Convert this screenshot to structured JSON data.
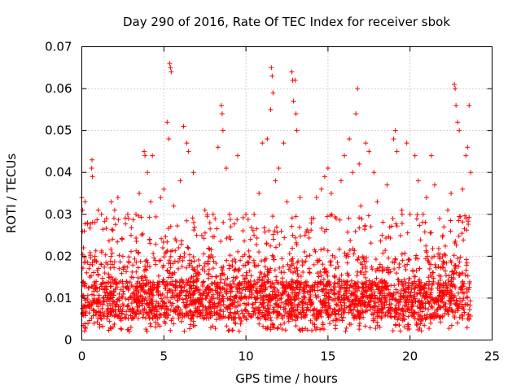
{
  "chart_data": {
    "type": "scatter",
    "title": "Day 290 of 2016, Rate Of TEC Index for receiver sbok",
    "xlabel": "GPS time / hours",
    "ylabel": "ROTI / TECUs",
    "xlim": [
      0,
      25
    ],
    "ylim": [
      0,
      0.07
    ],
    "xticks": [
      0,
      5,
      10,
      15,
      20,
      25
    ],
    "yticks": [
      0,
      0.01,
      0.02,
      0.03,
      0.04,
      0.05,
      0.06,
      0.07
    ],
    "xtick_labels": [
      "0",
      "5",
      "10",
      "15",
      "20",
      "25"
    ],
    "ytick_labels": [
      "0",
      "0.01",
      "0.02",
      "0.03",
      "0.04",
      "0.05",
      "0.06",
      "0.07"
    ],
    "grid": true,
    "marker": "+",
    "marker_color": "#ff0000",
    "series": [
      {
        "name": "ROTI",
        "points": [
          [
            0.0,
            0.034
          ],
          [
            0.05,
            0.031
          ],
          [
            0.1,
            0.022
          ],
          [
            0.15,
            0.026
          ],
          [
            0.2,
            0.033
          ],
          [
            0.35,
            0.028
          ],
          [
            0.5,
            0.018
          ],
          [
            0.6,
            0.041
          ],
          [
            0.62,
            0.043
          ],
          [
            0.65,
            0.039
          ],
          [
            0.8,
            0.02
          ],
          [
            1.0,
            0.031
          ],
          [
            1.2,
            0.03
          ],
          [
            1.4,
            0.016
          ],
          [
            1.5,
            0.029
          ],
          [
            1.8,
            0.033
          ],
          [
            2.0,
            0.031
          ],
          [
            2.2,
            0.034
          ],
          [
            2.5,
            0.02
          ],
          [
            2.8,
            0.03
          ],
          [
            3.0,
            0.025
          ],
          [
            3.3,
            0.03
          ],
          [
            3.5,
            0.035
          ],
          [
            3.8,
            0.045
          ],
          [
            3.85,
            0.044
          ],
          [
            4.0,
            0.04
          ],
          [
            4.2,
            0.033
          ],
          [
            4.3,
            0.044
          ],
          [
            4.5,
            0.018
          ],
          [
            4.8,
            0.034
          ],
          [
            5.0,
            0.036
          ],
          [
            5.2,
            0.052
          ],
          [
            5.3,
            0.048
          ],
          [
            5.35,
            0.066
          ],
          [
            5.4,
            0.065
          ],
          [
            5.45,
            0.064
          ],
          [
            5.6,
            0.032
          ],
          [
            6.0,
            0.038
          ],
          [
            6.2,
            0.051
          ],
          [
            6.4,
            0.047
          ],
          [
            6.5,
            0.045
          ],
          [
            6.8,
            0.04
          ],
          [
            7.0,
            0.025
          ],
          [
            7.5,
            0.031
          ],
          [
            7.8,
            0.028
          ],
          [
            8.0,
            0.03
          ],
          [
            8.3,
            0.046
          ],
          [
            8.5,
            0.056
          ],
          [
            8.55,
            0.054
          ],
          [
            8.6,
            0.05
          ],
          [
            8.8,
            0.041
          ],
          [
            9.0,
            0.03
          ],
          [
            9.5,
            0.044
          ],
          [
            9.8,
            0.02
          ],
          [
            10.0,
            0.03
          ],
          [
            10.2,
            0.02
          ],
          [
            10.5,
            0.03
          ],
          [
            10.8,
            0.035
          ],
          [
            11.0,
            0.047
          ],
          [
            11.3,
            0.048
          ],
          [
            11.5,
            0.055
          ],
          [
            11.55,
            0.065
          ],
          [
            11.6,
            0.063
          ],
          [
            11.65,
            0.059
          ],
          [
            11.8,
            0.038
          ],
          [
            12.0,
            0.041
          ],
          [
            12.3,
            0.047
          ],
          [
            12.5,
            0.033
          ],
          [
            12.8,
            0.064
          ],
          [
            12.85,
            0.062
          ],
          [
            12.9,
            0.057
          ],
          [
            13.0,
            0.062
          ],
          [
            13.05,
            0.054
          ],
          [
            13.1,
            0.05
          ],
          [
            13.3,
            0.034
          ],
          [
            13.6,
            0.025
          ],
          [
            14.0,
            0.029
          ],
          [
            14.3,
            0.034
          ],
          [
            14.6,
            0.036
          ],
          [
            14.8,
            0.039
          ],
          [
            15.0,
            0.041
          ],
          [
            15.2,
            0.035
          ],
          [
            15.5,
            0.029
          ],
          [
            15.8,
            0.038
          ],
          [
            16.0,
            0.044
          ],
          [
            16.3,
            0.048
          ],
          [
            16.5,
            0.04
          ],
          [
            16.7,
            0.054
          ],
          [
            16.8,
            0.06
          ],
          [
            16.9,
            0.042
          ],
          [
            17.0,
            0.032
          ],
          [
            17.3,
            0.047
          ],
          [
            17.5,
            0.045
          ],
          [
            17.8,
            0.04
          ],
          [
            18.0,
            0.033
          ],
          [
            18.3,
            0.025
          ],
          [
            18.6,
            0.037
          ],
          [
            19.0,
            0.048
          ],
          [
            19.1,
            0.05
          ],
          [
            19.2,
            0.045
          ],
          [
            19.5,
            0.031
          ],
          [
            19.8,
            0.047
          ],
          [
            20.0,
            0.03
          ],
          [
            20.3,
            0.044
          ],
          [
            20.5,
            0.038
          ],
          [
            20.8,
            0.03
          ],
          [
            21.0,
            0.034
          ],
          [
            21.3,
            0.044
          ],
          [
            21.5,
            0.037
          ],
          [
            21.8,
            0.029
          ],
          [
            22.0,
            0.025
          ],
          [
            22.3,
            0.031
          ],
          [
            22.5,
            0.035
          ],
          [
            22.7,
            0.061
          ],
          [
            22.75,
            0.06
          ],
          [
            22.8,
            0.056
          ],
          [
            22.9,
            0.052
          ],
          [
            23.0,
            0.05
          ],
          [
            23.2,
            0.036
          ],
          [
            23.4,
            0.044
          ],
          [
            23.5,
            0.046
          ],
          [
            23.6,
            0.056
          ],
          [
            23.7,
            0.04
          ]
        ]
      }
    ],
    "dense_band": {
      "x_start": 0.0,
      "x_end": 23.7,
      "y_min": 0.002,
      "typical_top": 0.02,
      "count": 3000
    }
  }
}
